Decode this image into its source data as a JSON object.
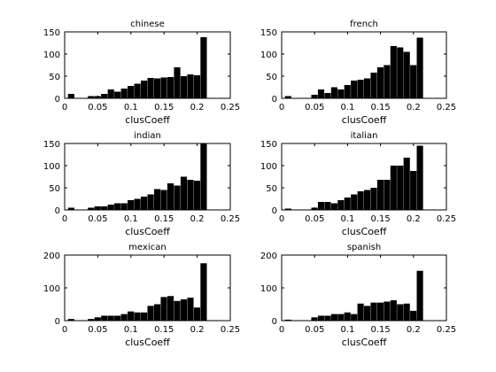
{
  "chart_data": [
    {
      "type": "bar",
      "title": "chinese",
      "xlabel": "clusCoeff",
      "ylabel": "",
      "xlim": [
        0,
        0.25
      ],
      "ylim": [
        0,
        150
      ],
      "xticks": [
        0,
        0.05,
        0.1,
        0.15,
        0.2,
        0.25
      ],
      "xtick_labels": [
        "0",
        "0.05",
        "0.1",
        "0.15",
        "0.2",
        "0.25"
      ],
      "yticks": [
        0,
        50,
        100,
        150
      ],
      "ytick_labels": [
        "0",
        "50",
        "100",
        "150"
      ],
      "bin_width": 0.01,
      "x": [
        0.01,
        0.02,
        0.03,
        0.04,
        0.05,
        0.06,
        0.07,
        0.08,
        0.09,
        0.1,
        0.11,
        0.12,
        0.13,
        0.14,
        0.15,
        0.16,
        0.17,
        0.18,
        0.19,
        0.2,
        0.21
      ],
      "values": [
        10,
        0,
        0,
        5,
        5,
        10,
        20,
        15,
        22,
        28,
        33,
        40,
        46,
        45,
        47,
        48,
        70,
        50,
        54,
        52,
        138
      ]
    },
    {
      "type": "bar",
      "title": "french",
      "xlabel": "clusCoeff",
      "ylabel": "",
      "xlim": [
        0,
        0.25
      ],
      "ylim": [
        0,
        150
      ],
      "xticks": [
        0,
        0.05,
        0.1,
        0.15,
        0.2,
        0.25
      ],
      "xtick_labels": [
        "0",
        "0.05",
        "0.1",
        "0.15",
        "0.2",
        "0.25"
      ],
      "yticks": [
        0,
        50,
        100,
        150
      ],
      "ytick_labels": [
        "0",
        "50",
        "100",
        "150"
      ],
      "bin_width": 0.01,
      "x": [
        0.01,
        0.02,
        0.03,
        0.04,
        0.05,
        0.06,
        0.07,
        0.08,
        0.09,
        0.1,
        0.11,
        0.12,
        0.13,
        0.14,
        0.15,
        0.16,
        0.17,
        0.18,
        0.19,
        0.2,
        0.21
      ],
      "values": [
        5,
        0,
        0,
        0,
        8,
        20,
        12,
        25,
        20,
        30,
        40,
        42,
        45,
        58,
        70,
        75,
        118,
        115,
        105,
        75,
        137
      ]
    },
    {
      "type": "bar",
      "title": "indian",
      "xlabel": "clusCoeff",
      "ylabel": "",
      "xlim": [
        0,
        0.25
      ],
      "ylim": [
        0,
        150
      ],
      "xticks": [
        0,
        0.05,
        0.1,
        0.15,
        0.2,
        0.25
      ],
      "xtick_labels": [
        "0",
        "0.05",
        "0.1",
        "0.15",
        "0.2",
        "0.25"
      ],
      "yticks": [
        0,
        50,
        100,
        150
      ],
      "ytick_labels": [
        "0",
        "50",
        "100",
        "150"
      ],
      "bin_width": 0.01,
      "x": [
        0.01,
        0.02,
        0.03,
        0.04,
        0.05,
        0.06,
        0.07,
        0.08,
        0.09,
        0.1,
        0.11,
        0.12,
        0.13,
        0.14,
        0.15,
        0.16,
        0.17,
        0.18,
        0.19,
        0.2,
        0.21
      ],
      "values": [
        5,
        0,
        0,
        5,
        8,
        8,
        12,
        15,
        15,
        22,
        25,
        30,
        35,
        47,
        45,
        60,
        55,
        75,
        68,
        66,
        150
      ]
    },
    {
      "type": "bar",
      "title": "italian",
      "xlabel": "clusCoeff",
      "ylabel": "",
      "xlim": [
        0,
        0.25
      ],
      "ylim": [
        0,
        150
      ],
      "xticks": [
        0,
        0.05,
        0.1,
        0.15,
        0.2,
        0.25
      ],
      "xtick_labels": [
        "0",
        "0.05",
        "0.1",
        "0.15",
        "0.2",
        "0.25"
      ],
      "yticks": [
        0,
        50,
        100,
        150
      ],
      "ytick_labels": [
        "0",
        "50",
        "100",
        "150"
      ],
      "bin_width": 0.01,
      "x": [
        0.01,
        0.02,
        0.03,
        0.04,
        0.05,
        0.06,
        0.07,
        0.08,
        0.09,
        0.1,
        0.11,
        0.12,
        0.13,
        0.14,
        0.15,
        0.16,
        0.17,
        0.18,
        0.19,
        0.2,
        0.21
      ],
      "values": [
        3,
        0,
        0,
        0,
        5,
        18,
        18,
        15,
        22,
        28,
        35,
        42,
        45,
        50,
        68,
        68,
        100,
        100,
        118,
        88,
        145
      ]
    },
    {
      "type": "bar",
      "title": "mexican",
      "xlabel": "clusCoeff",
      "ylabel": "",
      "xlim": [
        0,
        0.25
      ],
      "ylim": [
        0,
        200
      ],
      "xticks": [
        0,
        0.05,
        0.1,
        0.15,
        0.2,
        0.25
      ],
      "xtick_labels": [
        "0",
        "0.05",
        "0.1",
        "0.15",
        "0.2",
        "0.25"
      ],
      "yticks": [
        0,
        100,
        200
      ],
      "ytick_labels": [
        "0",
        "100",
        "200"
      ],
      "bin_width": 0.01,
      "x": [
        0.01,
        0.02,
        0.03,
        0.04,
        0.05,
        0.06,
        0.07,
        0.08,
        0.09,
        0.1,
        0.11,
        0.12,
        0.13,
        0.14,
        0.15,
        0.16,
        0.17,
        0.18,
        0.19,
        0.2,
        0.21
      ],
      "values": [
        5,
        0,
        0,
        5,
        10,
        15,
        15,
        15,
        20,
        28,
        25,
        25,
        45,
        50,
        72,
        75,
        60,
        65,
        70,
        40,
        175
      ]
    },
    {
      "type": "bar",
      "title": "spanish",
      "xlabel": "clusCoeff",
      "ylabel": "",
      "xlim": [
        0,
        0.25
      ],
      "ylim": [
        0,
        200
      ],
      "xticks": [
        0,
        0.05,
        0.1,
        0.15,
        0.2,
        0.25
      ],
      "xtick_labels": [
        "0",
        "0.05",
        "0.1",
        "0.15",
        "0.2",
        "0.25"
      ],
      "yticks": [
        0,
        100,
        200
      ],
      "ytick_labels": [
        "0",
        "100",
        "200"
      ],
      "bin_width": 0.01,
      "x": [
        0.01,
        0.02,
        0.03,
        0.04,
        0.05,
        0.06,
        0.07,
        0.08,
        0.09,
        0.1,
        0.11,
        0.12,
        0.13,
        0.14,
        0.15,
        0.16,
        0.17,
        0.18,
        0.19,
        0.2,
        0.21
      ],
      "values": [
        3,
        0,
        0,
        0,
        10,
        15,
        15,
        20,
        20,
        25,
        20,
        52,
        45,
        55,
        55,
        58,
        62,
        50,
        52,
        30,
        152
      ]
    }
  ],
  "bar_color": "#000000"
}
